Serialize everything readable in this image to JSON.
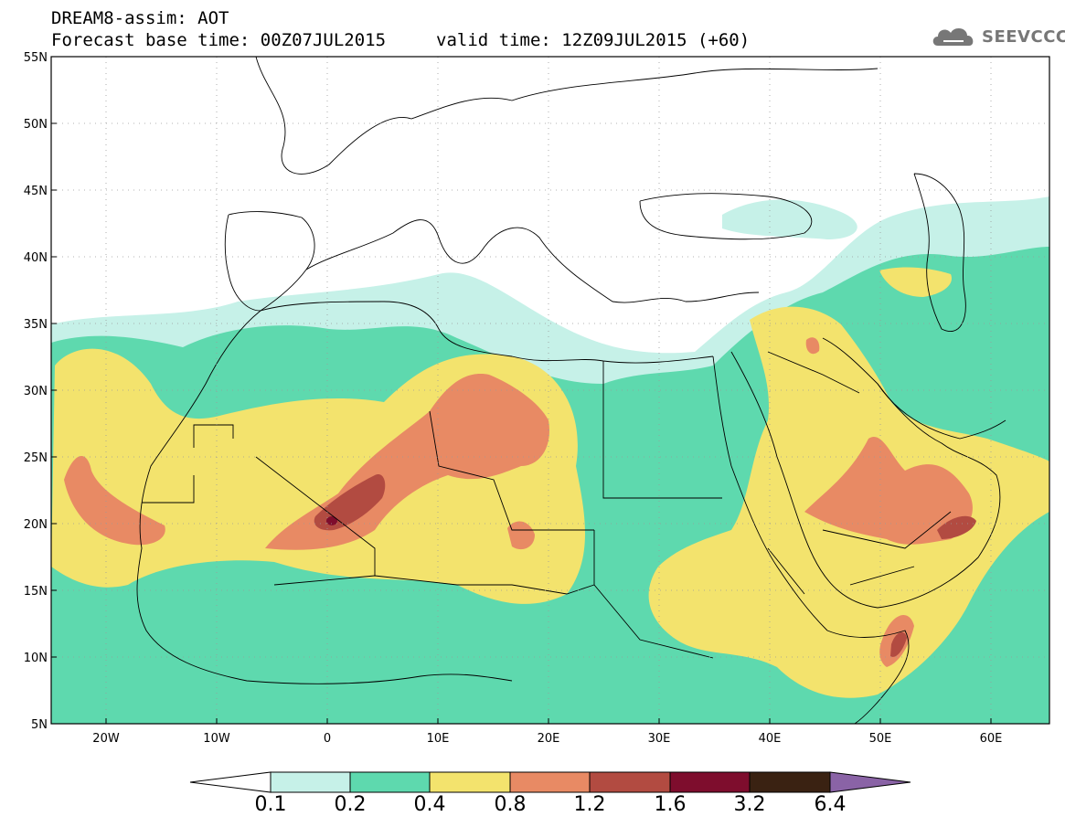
{
  "header": {
    "title": "DREAM8-assim: AOT",
    "base_time": "Forecast base time: 00Z07JUL2015",
    "valid_time": "valid time: 12Z09JUL2015 (+60)"
  },
  "logo": {
    "text": "SEEVCCC",
    "icon": "cloud-icon"
  },
  "map": {
    "lat_labels": [
      "55N",
      "50N",
      "45N",
      "40N",
      "35N",
      "30N",
      "25N",
      "20N",
      "15N",
      "10N",
      "5N"
    ],
    "lon_labels": [
      "20W",
      "10W",
      "0",
      "10E",
      "20E",
      "30E",
      "40E",
      "50E",
      "60E"
    ]
  },
  "colorbar": {
    "labels": [
      "0.1",
      "0.2",
      "0.4",
      "0.8",
      "1.2",
      "1.6",
      "3.2",
      "6.4"
    ],
    "colors": [
      "#ffffff",
      "#c6f1e8",
      "#5ed9ae",
      "#f3e36d",
      "#e88a64",
      "#b24b41",
      "#7e0d2d",
      "#3a2212",
      "#8a63a6"
    ]
  },
  "colors": {
    "light_teal": "#c6f1e8",
    "teal": "#5ed9ae",
    "yellow": "#f3e36d",
    "orange": "#e88a64",
    "brown_red": "#b24b41",
    "maroon": "#7e0d2d"
  }
}
